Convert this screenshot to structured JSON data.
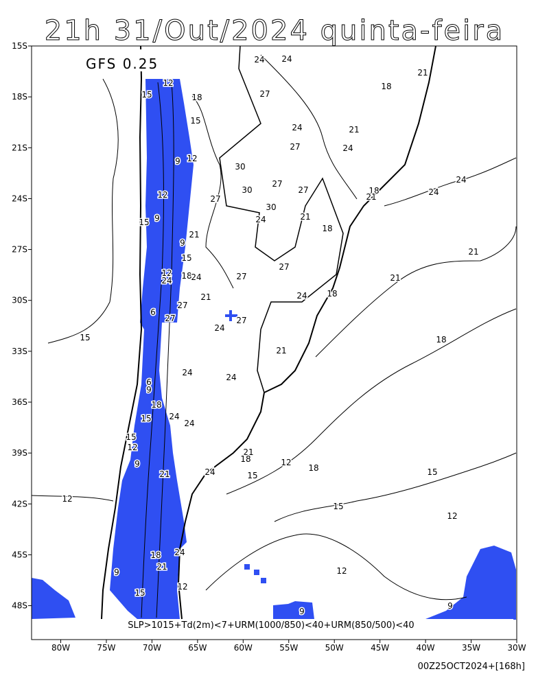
{
  "header": {
    "title": "21h 31/Out/2024 quinta-feira",
    "model": "GFS 0.25"
  },
  "map": {
    "lonlim": [
      -83.2,
      -30
    ],
    "latlim": [
      -15,
      -50
    ],
    "lat_ticks": [
      {
        "value": -15,
        "label": "15S"
      },
      {
        "value": -18,
        "label": "18S"
      },
      {
        "value": -21,
        "label": "21S"
      },
      {
        "value": -24,
        "label": "24S"
      },
      {
        "value": -27,
        "label": "27S"
      },
      {
        "value": -30,
        "label": "30S"
      },
      {
        "value": -33,
        "label": "33S"
      },
      {
        "value": -36,
        "label": "36S"
      },
      {
        "value": -39,
        "label": "39S"
      },
      {
        "value": -42,
        "label": "42S"
      },
      {
        "value": -45,
        "label": "45S"
      },
      {
        "value": -48,
        "label": "48S"
      }
    ],
    "lon_ticks": [
      {
        "value": -80,
        "label": "80W"
      },
      {
        "value": -75,
        "label": "75W"
      },
      {
        "value": -70,
        "label": "70W"
      },
      {
        "value": -65,
        "label": "65W"
      },
      {
        "value": -60,
        "label": "60W"
      },
      {
        "value": -55,
        "label": "55W"
      },
      {
        "value": -50,
        "label": "50W"
      },
      {
        "value": -45,
        "label": "45W"
      },
      {
        "value": -40,
        "label": "40W"
      },
      {
        "value": -35,
        "label": "35W"
      },
      {
        "value": -30,
        "label": "30W"
      }
    ],
    "contour_labels": [
      "12",
      "15",
      "18",
      "15",
      "9",
      "12",
      "12",
      "9",
      "15",
      "9",
      "21",
      "15",
      "12",
      "18",
      "24",
      "24",
      "27",
      "21",
      "6",
      "27",
      "24",
      "27",
      "24",
      "24",
      "27",
      "18",
      "21",
      "24",
      "27",
      "21",
      "24",
      "30",
      "27",
      "27",
      "30",
      "27",
      "30",
      "24",
      "21",
      "18",
      "18",
      "21",
      "24",
      "24",
      "21",
      "27",
      "27",
      "24",
      "18",
      "21",
      "21",
      "18",
      "15",
      "24",
      "24",
      "6",
      "9",
      "18",
      "15",
      "24",
      "24",
      "15",
      "12",
      "9",
      "21",
      "24",
      "21",
      "18",
      "15",
      "12",
      "18",
      "15",
      "12",
      "15",
      "12",
      "18",
      "21",
      "24",
      "9",
      "15",
      "12",
      "12",
      "9",
      "9"
    ],
    "shading_color": "#2f4ff2",
    "criteria": "SLP>1015+Td(2m)<7+URM(1000/850)<40+URM(850/500)<40"
  },
  "footer": {
    "run": "00Z25OCT2024+[168h]"
  }
}
